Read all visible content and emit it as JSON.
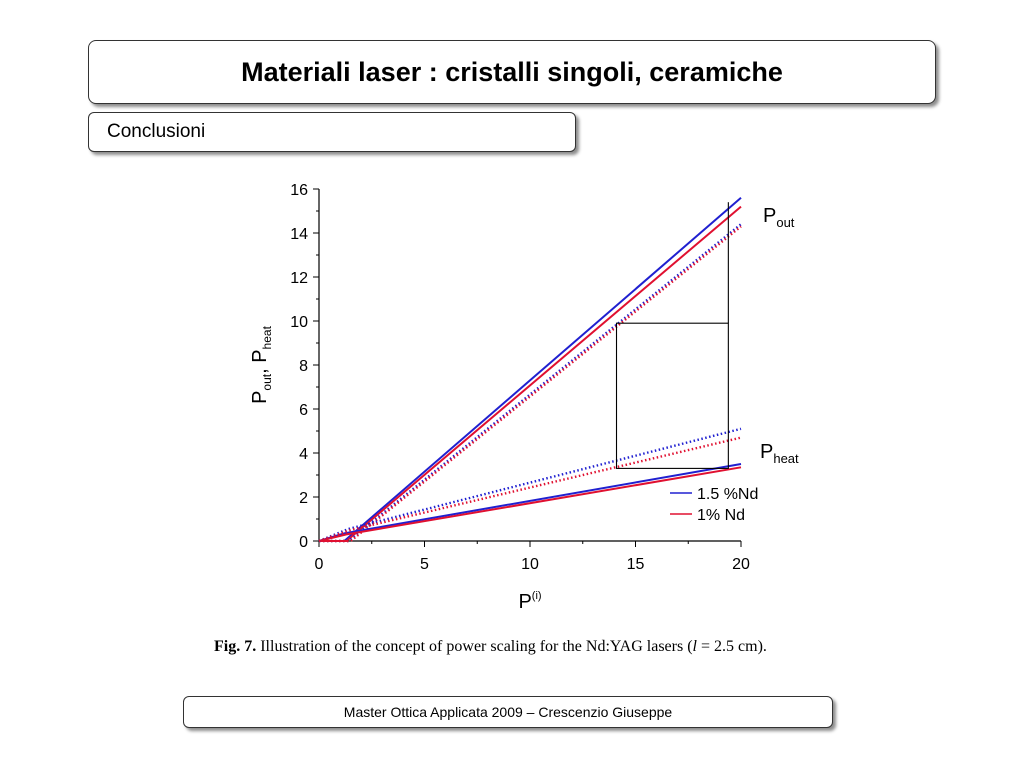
{
  "slide": {
    "title": "Materiali laser : cristalli singoli, ceramiche",
    "subtitle": "Conclusioni",
    "footer": "Master Ottica Applicata  2009 – Crescenzio Giuseppe"
  },
  "caption": {
    "fig_label": "Fig. 7.",
    "text_before_var": "Illustration of the concept of power scaling for the Nd:YAG lasers (",
    "var": "l",
    "text_after_var": " = 2.5 cm)."
  },
  "chart_data": {
    "type": "line",
    "xlabel_main": "P",
    "xlabel_sup": "(i)",
    "ylabel_parts": [
      "P",
      "out",
      ", P",
      "heat"
    ],
    "xlim": [
      0,
      20
    ],
    "ylim": [
      0,
      16
    ],
    "xticks": [
      0,
      5,
      10,
      15,
      20
    ],
    "yticks": [
      0,
      2,
      4,
      6,
      8,
      10,
      12,
      14,
      16
    ],
    "labels": {
      "pout_main": "P",
      "pout_sub": "out",
      "pheat_main": "P",
      "pheat_sub": "heat"
    },
    "legend": {
      "position": "bottom-right",
      "entries": [
        {
          "label": "1.5 %Nd",
          "color": "#2020d0"
        },
        {
          "label": "1% Nd",
          "color": "#e01030"
        }
      ]
    },
    "series": [
      {
        "name": "1.5 %Nd",
        "quantity": "Pout",
        "style": "solid",
        "color": "#2020d0",
        "x": [
          0,
          1.2,
          20
        ],
        "y": [
          0,
          0,
          15.6
        ]
      },
      {
        "name": "1% Nd",
        "quantity": "Pout",
        "style": "solid",
        "color": "#e01030",
        "x": [
          0,
          1.3,
          20
        ],
        "y": [
          0,
          0,
          15.2
        ]
      },
      {
        "name": "1.5 %Nd",
        "quantity": "Pout",
        "style": "dotted",
        "color": "#2020d0",
        "x": [
          0,
          1.4,
          20
        ],
        "y": [
          0,
          0,
          14.4
        ]
      },
      {
        "name": "1% Nd",
        "quantity": "Pout",
        "style": "dotted",
        "color": "#e01030",
        "x": [
          0,
          1.5,
          20
        ],
        "y": [
          0,
          0,
          14.3
        ]
      },
      {
        "name": "1.5 %Nd",
        "quantity": "Pheat",
        "style": "solid",
        "color": "#2020d0",
        "x": [
          0,
          1.2,
          20
        ],
        "y": [
          0,
          0.35,
          3.5
        ]
      },
      {
        "name": "1% Nd",
        "quantity": "Pheat",
        "style": "solid",
        "color": "#e01030",
        "x": [
          0,
          1.3,
          20
        ],
        "y": [
          0,
          0.3,
          3.35
        ]
      },
      {
        "name": "1.5 %Nd",
        "quantity": "Pheat",
        "style": "dotted",
        "color": "#2020d0",
        "x": [
          0,
          1.4,
          20
        ],
        "y": [
          0,
          0.55,
          5.1
        ]
      },
      {
        "name": "1% Nd",
        "quantity": "Pheat",
        "style": "dotted",
        "color": "#e01030",
        "x": [
          0,
          1.5,
          20
        ],
        "y": [
          0,
          0.5,
          4.7
        ]
      }
    ],
    "annotation_box": {
      "x": [
        14.1,
        19.4
      ],
      "y": [
        3.3,
        9.9
      ]
    }
  }
}
